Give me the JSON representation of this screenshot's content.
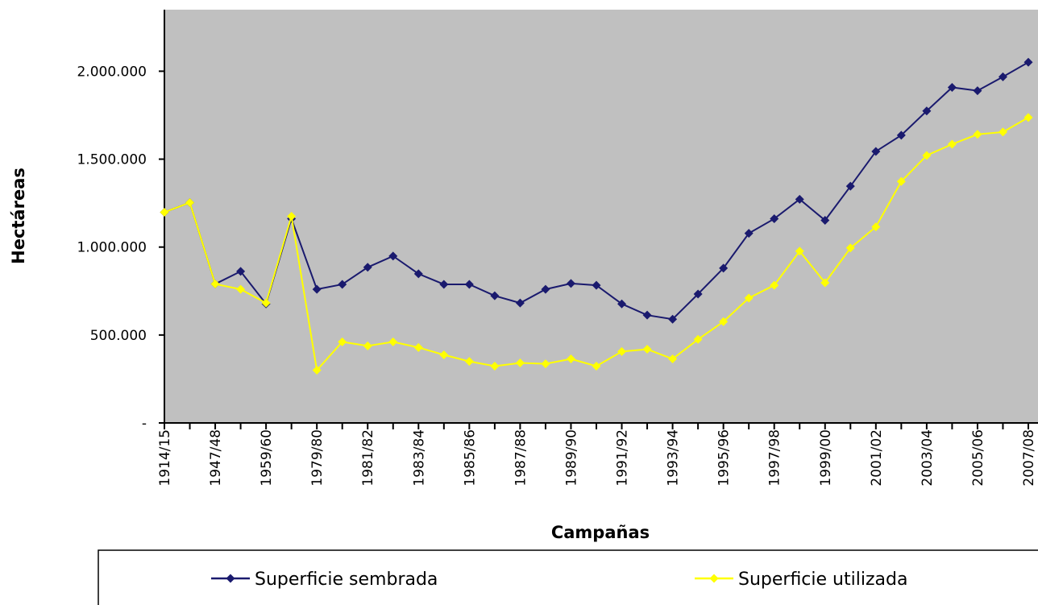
{
  "chart_data": {
    "type": "line",
    "y_label": "Hectáreas",
    "x_label": "Campañas",
    "categories": [
      "1914/15",
      null,
      "1947/48",
      null,
      "1959/60",
      null,
      "1979/80",
      null,
      "1981/82",
      null,
      "1983/84",
      null,
      "1985/86",
      null,
      "1987/88",
      null,
      "1989/90",
      null,
      "1991/92",
      null,
      "1993/94",
      null,
      "1995/96",
      null,
      "1997/98",
      null,
      "1999/00",
      null,
      "2001/02",
      null,
      "2003/04",
      null,
      "2005/06",
      null,
      "2007/08"
    ],
    "series": [
      {
        "name": "Superficie sembrada",
        "color": "#1a1a6e",
        "values": [
          1198000,
          1253000,
          790000,
          862000,
          677000,
          1161000,
          760000,
          788000,
          885000,
          949000,
          848000,
          788000,
          788000,
          723000,
          682000,
          760000,
          793000,
          783000,
          677000,
          613000,
          590000,
          733000,
          880000,
          1078000,
          1161000,
          1272000,
          1152000,
          1346000,
          1544000,
          1636000,
          1774000,
          1908000,
          1889000,
          1968000,
          2051000
        ]
      },
      {
        "name": "Superficie utilizada",
        "color": "#ffff00",
        "values": [
          1198000,
          1253000,
          790000,
          760000,
          682000,
          1175000,
          300000,
          461000,
          438000,
          461000,
          429000,
          387000,
          350000,
          323000,
          341000,
          336000,
          364000,
          323000,
          406000,
          419000,
          364000,
          475000,
          576000,
          710000,
          783000,
          977000,
          797000,
          995000,
          1115000,
          1373000,
          1521000,
          1585000,
          1641000,
          1654000,
          1737000
        ]
      }
    ],
    "ylim": [
      0,
      2350000
    ],
    "yticks": [
      {
        "value": 0,
        "label": "-"
      },
      {
        "value": 500000,
        "label": "500.000"
      },
      {
        "value": 1000000,
        "label": "1.000.000"
      },
      {
        "value": 1500000,
        "label": "1.500.000"
      },
      {
        "value": 2000000,
        "label": "2.000.000"
      }
    ],
    "plot_background": "#c0c0c0"
  }
}
